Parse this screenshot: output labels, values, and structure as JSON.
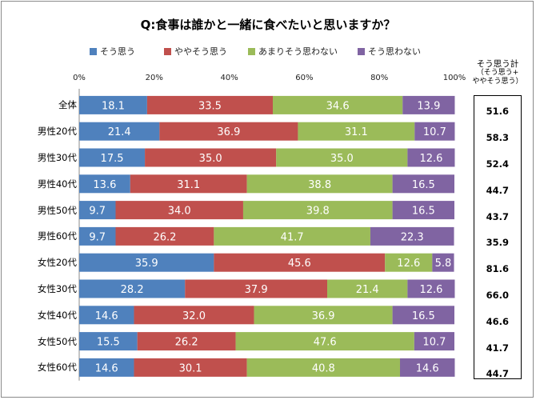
{
  "title": "Q:食事は誰かと一緒に食べたいと思いますか？",
  "colors": {
    "sou_omou": "#4F81BD",
    "yaya": "#C0504D",
    "amari": "#9BBB59",
    "omowanai": "#8064A2"
  },
  "sum_header": {
    "line1": "そう思う計",
    "line2": "（そう思う+",
    "line3": "ややそう思う）"
  },
  "chart_data": {
    "type": "bar",
    "orientation": "horizontal",
    "stacked": true,
    "title": "Q:食事は誰かと一緒に食べたいと思いますか？",
    "x_ticks": [
      "0%",
      "20%",
      "40%",
      "60%",
      "80%",
      "100%"
    ],
    "xlim": [
      0,
      100
    ],
    "legend_position": "top",
    "categories": [
      "全体",
      "男性20代",
      "男性30代",
      "男性40代",
      "男性50代",
      "男性60代",
      "女性20代",
      "女性30代",
      "女性40代",
      "女性50代",
      "女性60代"
    ],
    "series": [
      {
        "name": "そう思う",
        "color": "#4F81BD",
        "values": [
          18.1,
          21.4,
          17.5,
          13.6,
          9.7,
          9.7,
          35.9,
          28.2,
          14.6,
          15.5,
          14.6
        ]
      },
      {
        "name": "ややそう思う",
        "color": "#C0504D",
        "values": [
          33.5,
          36.9,
          35.0,
          31.1,
          34.0,
          26.2,
          45.6,
          37.9,
          32.0,
          26.2,
          30.1
        ]
      },
      {
        "name": "あまりそう思わない",
        "color": "#9BBB59",
        "values": [
          34.6,
          31.1,
          35.0,
          38.8,
          39.8,
          41.7,
          12.6,
          21.4,
          36.9,
          47.6,
          40.8
        ]
      },
      {
        "name": "そう思わない",
        "color": "#8064A2",
        "values": [
          13.9,
          10.7,
          12.6,
          16.5,
          16.5,
          22.3,
          5.8,
          12.6,
          16.5,
          10.7,
          14.6
        ]
      }
    ],
    "sou_omou_total": [
      51.6,
      58.3,
      52.4,
      44.7,
      43.7,
      35.9,
      81.6,
      66.0,
      46.6,
      41.7,
      44.7
    ]
  }
}
